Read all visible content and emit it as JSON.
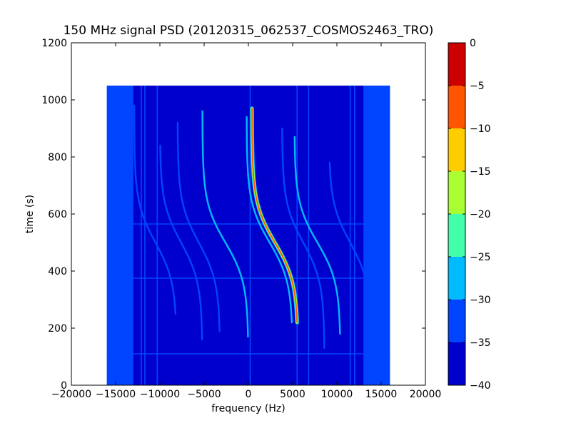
{
  "chart_data": {
    "type": "heatmap",
    "title": "150 MHz signal PSD (20120315_062537_COSMOS2463_TRO)",
    "xlabel": "frequency (Hz)",
    "ylabel": "time (s)",
    "xlim": [
      -20000,
      20000
    ],
    "ylim": [
      0,
      1200
    ],
    "x_ticks": [
      -20000,
      -15000,
      -10000,
      -5000,
      0,
      5000,
      10000,
      15000,
      20000
    ],
    "x_tick_labels": [
      "−20000",
      "−15000",
      "−10000",
      "−5000",
      "0",
      "5000",
      "10000",
      "15000",
      "20000"
    ],
    "y_ticks": [
      0,
      200,
      400,
      600,
      800,
      1000,
      1200
    ],
    "y_tick_labels": [
      "0",
      "200",
      "400",
      "600",
      "800",
      "1000",
      "1200"
    ],
    "data_extent": {
      "x": [
        -16000,
        16000
      ],
      "y": [
        0,
        1050
      ]
    },
    "grid": false,
    "colorbar": {
      "levels": [
        -40,
        -35,
        -30,
        -25,
        -20,
        -15,
        -10,
        -5,
        0
      ],
      "tick_labels": [
        "−40",
        "−35",
        "−30",
        "−25",
        "−20",
        "−15",
        "−10",
        "−5",
        "0"
      ],
      "colors": [
        "#0000cc",
        "#0044ff",
        "#00bbff",
        "#44ffaa",
        "#aaff33",
        "#ffcc00",
        "#ff5500",
        "#cc0000"
      ]
    },
    "background_level": -35,
    "edge_band_level": -30,
    "curves": [
      {
        "center": 3000,
        "t_mid": 500,
        "amplitude": 2600,
        "level": -5,
        "t_start": 220,
        "t_end": 970
      },
      {
        "center": 2400,
        "t_mid": 500,
        "amplitude": 2600,
        "level": -25,
        "t_start": 220,
        "t_end": 940
      },
      {
        "center": 7800,
        "t_mid": 500,
        "amplitude": 2600,
        "level": -25,
        "t_start": 180,
        "t_end": 870
      },
      {
        "center": -2600,
        "t_mid": 500,
        "amplitude": 2600,
        "level": -25,
        "t_start": 170,
        "t_end": 960
      },
      {
        "center": 6200,
        "t_mid": 500,
        "amplitude": 2400,
        "level": -30,
        "t_start": 130,
        "t_end": 900
      },
      {
        "center": -5600,
        "t_mid": 500,
        "amplitude": 2400,
        "level": -30,
        "t_start": 190,
        "t_end": 920
      },
      {
        "center": -7600,
        "t_mid": 500,
        "amplitude": 2400,
        "level": -30,
        "t_start": 160,
        "t_end": 840
      },
      {
        "center": 11500,
        "t_mid": 500,
        "amplitude": 2400,
        "level": -30,
        "t_start": 310,
        "t_end": 780
      },
      {
        "center": -10500,
        "t_mid": 500,
        "amplitude": 2400,
        "level": -30,
        "t_start": 250,
        "t_end": 980
      }
    ],
    "vertical_lines": [
      {
        "x": -12100,
        "level": -30
      },
      {
        "x": -11700,
        "level": -30
      },
      {
        "x": -10300,
        "level": -30
      },
      {
        "x": 200,
        "level": -30
      },
      {
        "x": 5500,
        "level": -30
      },
      {
        "x": 6800,
        "level": -30
      },
      {
        "x": 11500,
        "level": -30
      },
      {
        "x": 12000,
        "level": -30
      }
    ],
    "horizontal_lines": [
      {
        "y": 110,
        "level": -30
      },
      {
        "y": 375,
        "level": -30
      },
      {
        "y": 565,
        "level": -30
      }
    ]
  }
}
